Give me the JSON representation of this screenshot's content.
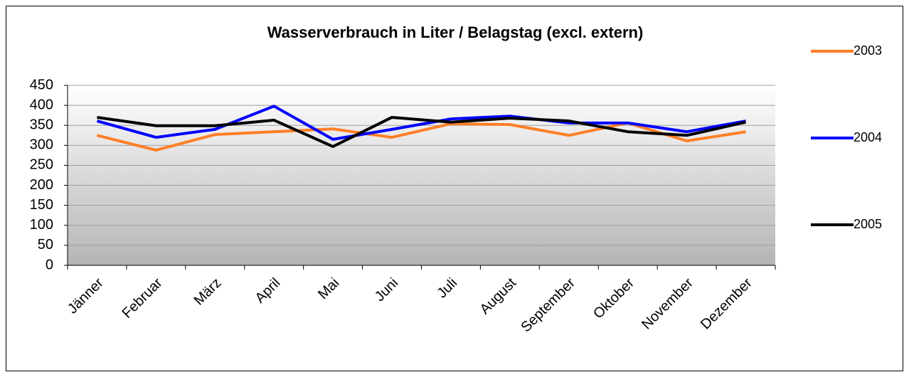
{
  "chart_data": {
    "type": "line",
    "title": "Wasserverbrauch in Liter / Belagstag (excl. extern)",
    "categories": [
      "Jänner",
      "Februar",
      "März",
      "April",
      "Mai",
      "Juni",
      "Juli",
      "August",
      "September",
      "Oktober",
      "November",
      "Dezember"
    ],
    "series": [
      {
        "name": "2003",
        "color": "#ff7f27",
        "values": [
          325,
          288,
          327,
          334,
          341,
          320,
          354,
          352,
          325,
          356,
          311,
          334
        ]
      },
      {
        "name": "2004",
        "color": "#0000ff",
        "values": [
          361,
          320,
          340,
          398,
          315,
          340,
          366,
          373,
          356,
          356,
          334,
          361
        ]
      },
      {
        "name": "2005",
        "color": "#000000",
        "values": [
          370,
          349,
          349,
          363,
          297,
          370,
          358,
          368,
          361,
          334,
          325,
          358
        ]
      }
    ],
    "ylim": [
      0,
      450
    ],
    "yticks": [
      0,
      50,
      100,
      150,
      200,
      250,
      300,
      350,
      400,
      450
    ],
    "grid": true,
    "legend": "right"
  }
}
